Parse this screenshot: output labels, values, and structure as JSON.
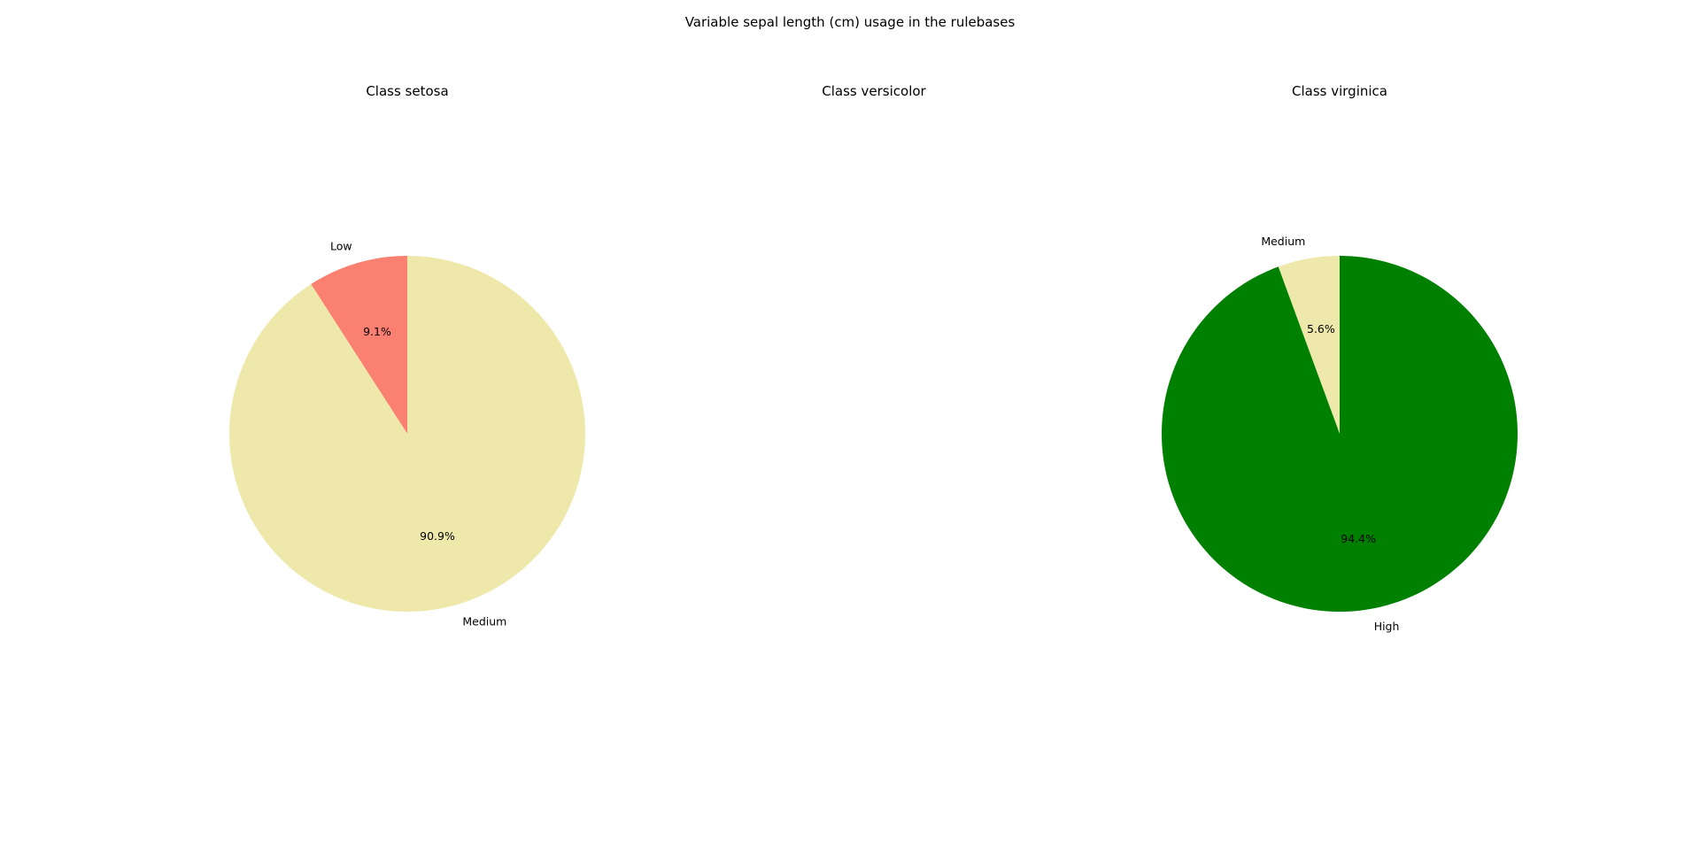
{
  "figure": {
    "title": "Variable sepal length (cm) usage in the rulebases"
  },
  "chart_data": [
    {
      "type": "pie",
      "title": "Class setosa",
      "slices": [
        {
          "label": "Low",
          "value": 9.1,
          "pct_label": "9.1%",
          "color": "#fa8072"
        },
        {
          "label": "Medium",
          "value": 90.9,
          "pct_label": "90.9%",
          "color": "#eee8aa"
        }
      ]
    },
    {
      "type": "pie",
      "title": "Class versicolor",
      "slices": []
    },
    {
      "type": "pie",
      "title": "Class virginica",
      "slices": [
        {
          "label": "Medium",
          "value": 5.6,
          "pct_label": "5.6%",
          "color": "#eee8aa"
        },
        {
          "label": "High",
          "value": 94.4,
          "pct_label": "94.4%",
          "color": "#008000"
        }
      ]
    }
  ]
}
